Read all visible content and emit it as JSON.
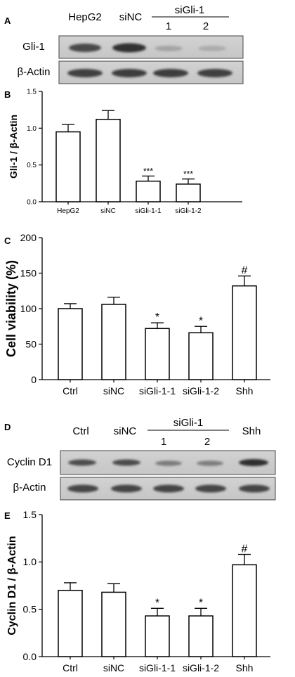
{
  "panels": {
    "A": {
      "letter": "A",
      "lane_headers": [
        "HepG2",
        "siNC"
      ],
      "group_label": "siGli-1",
      "group_sublabels": [
        "1",
        "2"
      ],
      "row_labels": [
        "Gli-1",
        "β-Actin"
      ]
    },
    "B": {
      "letter": "B"
    },
    "C": {
      "letter": "C"
    },
    "D": {
      "letter": "D",
      "lane_headers": [
        "Ctrl",
        "siNC"
      ],
      "group_label": "siGli-1",
      "group_sublabels": [
        "1",
        "2"
      ],
      "last_header": "Shh",
      "row_labels": [
        "Cyclin D1",
        "β-Actin"
      ]
    },
    "E": {
      "letter": "E"
    }
  },
  "chart_data": [
    {
      "panel": "B",
      "type": "bar",
      "categories": [
        "HepG2",
        "siNC",
        "siGli-1-1",
        "siGli-1-2"
      ],
      "values": [
        0.95,
        1.12,
        0.28,
        0.24
      ],
      "errors": [
        0.1,
        0.12,
        0.07,
        0.07
      ],
      "annotations": [
        "",
        "",
        "***",
        "***"
      ],
      "ylabel": "Gli-1 / β-Actin",
      "ylim": [
        0,
        1.5
      ],
      "yticks": [
        "0.0",
        "0.5",
        "1.0",
        "1.5"
      ]
    },
    {
      "panel": "C",
      "type": "bar",
      "categories": [
        "Ctrl",
        "siNC",
        "siGli-1-1",
        "siGli-1-2",
        "Shh"
      ],
      "values": [
        100,
        106,
        72,
        66,
        132
      ],
      "errors": [
        7,
        10,
        8,
        9,
        14
      ],
      "annotations": [
        "",
        "",
        "*",
        "*",
        "#"
      ],
      "ylabel": "Cell viability (%)",
      "ylim": [
        0,
        200
      ],
      "yticks": [
        "0",
        "50",
        "100",
        "150",
        "200"
      ]
    },
    {
      "panel": "E",
      "type": "bar",
      "categories": [
        "Ctrl",
        "siNC",
        "siGli-1-1",
        "siGli-1-2",
        "Shh"
      ],
      "values": [
        0.7,
        0.68,
        0.43,
        0.43,
        0.97
      ],
      "errors": [
        0.08,
        0.09,
        0.08,
        0.08,
        0.11
      ],
      "annotations": [
        "",
        "",
        "*",
        "*",
        "#"
      ],
      "ylabel": "Cyclin D1 / β-Actin",
      "ylim": [
        0,
        1.5
      ],
      "yticks": [
        "0.0",
        "0.5",
        "1.0",
        "1.5"
      ]
    }
  ]
}
